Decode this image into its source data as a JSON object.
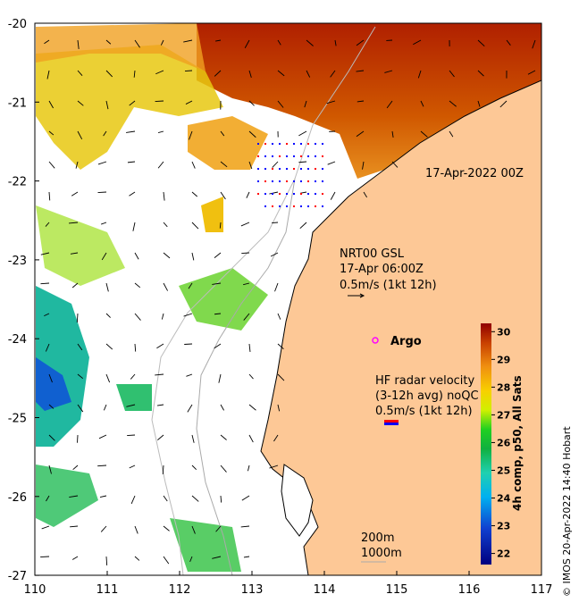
{
  "map": {
    "lon_ticks": [
      "110",
      "111",
      "112",
      "113",
      "114",
      "115",
      "116",
      "117"
    ],
    "lat_ticks": [
      "-20",
      "-21",
      "-22",
      "-23",
      "-24",
      "-25",
      "-26",
      "-27"
    ],
    "date_label": "17-Apr-2022 00Z",
    "model_legend": {
      "line1": "NRT00 GSL",
      "line2": "17-Apr 06:00Z",
      "line3": "0.5m/s (1kt 12h)"
    },
    "argo_label": "Argo",
    "hf_legend": {
      "line1": "HF radar velocity",
      "line2": "(3-12h avg) noQC",
      "line3": "0.5m/s (1kt 12h)"
    },
    "isobaths": {
      "line1": "200m",
      "line2": "1000m"
    },
    "credit": "© IMOS 20-Apr-2022 14:40 Hobart",
    "colors": {
      "land": "#fdc896",
      "argo": "#ff00ff",
      "hf_red": "#ff0000",
      "hf_blue": "#0000ff"
    }
  },
  "colorbar": {
    "label": "4h comp, p50, All Sats",
    "ticks": [
      "22",
      "23",
      "24",
      "25",
      "26",
      "27",
      "28",
      "29",
      "30"
    ],
    "range": [
      21.6,
      30.3
    ]
  }
}
